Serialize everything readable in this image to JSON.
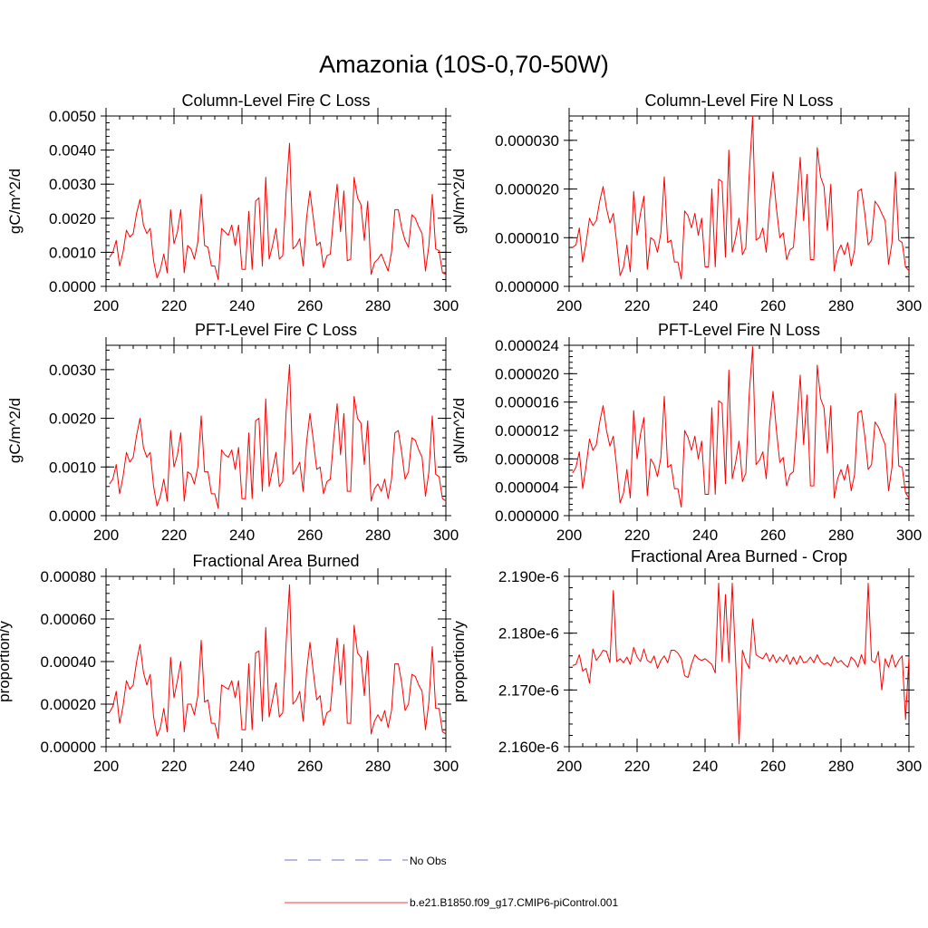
{
  "title": "Amazonia (10S-0,70-50W)",
  "legend": [
    {
      "label": "No Obs",
      "color": "#6b73c9",
      "style": "dashed"
    },
    {
      "label": "b.e21.B1850.f09_g17.CMIP6-piControl.001",
      "color": "#ff3b3b",
      "style": "solid"
    }
  ],
  "colors": {
    "series": "#ff0000",
    "axis": "#000000"
  },
  "chart_data": [
    {
      "type": "line",
      "title": "Column-Level Fire C Loss",
      "ylabel": "gC/m^2/d",
      "xlim": [
        200,
        300
      ],
      "ylim": [
        0,
        0.005
      ],
      "xticks": [
        200,
        220,
        240,
        260,
        280,
        300
      ],
      "xtick_labels": [
        "200",
        "220",
        "240",
        "260",
        "280",
        "300"
      ],
      "yticks": [
        0,
        0.001,
        0.002,
        0.003,
        0.004,
        0.005
      ],
      "ytick_labels": [
        "0.0000",
        "0.0010",
        "0.0020",
        "0.0030",
        "0.0040",
        "0.0050"
      ],
      "x_start": 201,
      "series": [
        {
          "name": "b.e21.B1850.f09_g17.CMIP6-piControl.001",
          "values": [
            0.00085,
            0.001,
            0.00135,
            0.0006,
            0.001,
            0.00165,
            0.00145,
            0.00155,
            0.00215,
            0.00255,
            0.0018,
            0.00155,
            0.0017,
            0.00075,
            0.00025,
            0.0005,
            0.00095,
            0.0004,
            0.00225,
            0.00125,
            0.0016,
            0.00225,
            0.0004,
            0.0012,
            0.0011,
            0.0008,
            0.0013,
            0.0027,
            0.0012,
            0.00115,
            0.0006,
            0.0006,
            0.0002,
            0.0017,
            0.0016,
            0.0015,
            0.0018,
            0.0012,
            0.0018,
            0.0005,
            0.0005,
            0.0022,
            0.0005,
            0.0025,
            0.0026,
            0.0006,
            0.0032,
            0.0008,
            0.0012,
            0.0017,
            0.0008,
            0.0009,
            0.0028,
            0.0042,
            0.0011,
            0.0012,
            0.0014,
            0.0006,
            0.002,
            0.0028,
            0.002,
            0.0012,
            0.0013,
            0.00055,
            0.0009,
            0.00095,
            0.0021,
            0.003,
            0.0016,
            0.0028,
            0.00075,
            0.0008,
            0.0032,
            0.0026,
            0.0024,
            0.00135,
            0.0025,
            0.00035,
            0.0007,
            0.0008,
            0.00095,
            0.0007,
            0.00045,
            0.001,
            0.00225,
            0.00225,
            0.0017,
            0.00135,
            0.00115,
            0.0021,
            0.002,
            0.00175,
            0.00155,
            0.00045,
            0.0012,
            0.0027,
            0.0011,
            0.00105,
            0.0004,
            0.00035
          ]
        }
      ]
    },
    {
      "type": "line",
      "title": "Column-Level Fire N Loss",
      "ylabel": "gN/m^2/d",
      "xlim": [
        200,
        300
      ],
      "ylim": [
        0,
        3.5e-05
      ],
      "xticks": [
        200,
        220,
        240,
        260,
        280,
        300
      ],
      "xtick_labels": [
        "200",
        "220",
        "240",
        "260",
        "280",
        "300"
      ],
      "yticks": [
        0,
        1e-05,
        2e-05,
        3e-05
      ],
      "ytick_labels": [
        "0.000000",
        "0.000010",
        "0.000020",
        "0.000030"
      ],
      "x_start": 201,
      "series": [
        {
          "name": "b.e21.B1850.f09_g17.CMIP6-piControl.001",
          "values": [
            8e-06,
            8.5e-06,
            1.2e-05,
            5e-06,
            9e-06,
            1.4e-05,
            1.25e-05,
            1.35e-05,
            1.75e-05,
            2.05e-05,
            1.6e-05,
            1.3e-05,
            1.5e-05,
            9e-06,
            2.2e-06,
            4e-06,
            8.5e-06,
            3e-06,
            1.95e-05,
            1.05e-05,
            1.5e-05,
            1.85e-05,
            3.5e-06,
            1e-05,
            9.5e-06,
            7e-06,
            1.1e-05,
            2.25e-05,
            9e-06,
            9.5e-06,
            5e-06,
            5e-06,
            1.5e-06,
            1.55e-05,
            1.45e-05,
            1.2e-05,
            1.5e-05,
            1.05e-05,
            1.4e-05,
            4e-06,
            4e-06,
            2e-05,
            4e-06,
            2.2e-05,
            2.15e-05,
            6e-06,
            2.8e-05,
            7e-06,
            1e-05,
            1.4e-05,
            6.5e-06,
            8e-06,
            2.3e-05,
            3.5e-05,
            9.5e-06,
            1e-05,
            1.2e-05,
            7e-06,
            1.7e-05,
            2.35e-05,
            1.6e-05,
            1e-05,
            1.1e-05,
            5.5e-06,
            7.5e-06,
            8e-06,
            1.7e-05,
            2.65e-05,
            1.35e-05,
            2.3e-05,
            5.5e-06,
            5.5e-06,
            2.85e-05,
            2.25e-05,
            2.05e-05,
            1.15e-05,
            2.1e-05,
            3.2e-06,
            7e-06,
            8.5e-06,
            6.5e-06,
            9e-06,
            4.2e-06,
            7.5e-06,
            1.95e-05,
            2e-05,
            1.5e-05,
            8.5e-06,
            9.5e-06,
            1.75e-05,
            1.65e-05,
            1.5e-05,
            1.35e-05,
            4.5e-06,
            9e-06,
            2.35e-05,
            9.5e-06,
            9e-06,
            4e-06,
            3.2e-06
          ]
        }
      ]
    },
    {
      "type": "line",
      "title": "PFT-Level Fire C Loss",
      "ylabel": "gC/m^2/d",
      "xlim": [
        200,
        300
      ],
      "ylim": [
        0,
        0.0035
      ],
      "xticks": [
        200,
        220,
        240,
        260,
        280,
        300
      ],
      "xtick_labels": [
        "200",
        "220",
        "240",
        "260",
        "280",
        "300"
      ],
      "yticks": [
        0,
        0.001,
        0.002,
        0.003
      ],
      "ytick_labels": [
        "0.0000",
        "0.0010",
        "0.0020",
        "0.0030"
      ],
      "x_start": 201,
      "series": [
        {
          "name": "b.e21.B1850.f09_g17.CMIP6-piControl.001",
          "values": [
            0.00065,
            0.00075,
            0.00105,
            0.00045,
            0.0008,
            0.0013,
            0.0011,
            0.0012,
            0.00165,
            0.002,
            0.0014,
            0.0012,
            0.0013,
            0.0006,
            0.0002,
            0.0004,
            0.00075,
            0.0003,
            0.00175,
            0.001,
            0.00125,
            0.0017,
            0.0003,
            0.0009,
            0.00085,
            0.00065,
            0.001,
            0.00205,
            0.0009,
            0.0009,
            0.00045,
            0.00045,
            0.00015,
            0.00135,
            0.00125,
            0.0012,
            0.00135,
            0.00095,
            0.0014,
            0.00035,
            0.00035,
            0.0017,
            0.00035,
            0.00195,
            0.002,
            0.0005,
            0.0024,
            0.0006,
            0.00095,
            0.0013,
            0.0006,
            0.0007,
            0.00215,
            0.0031,
            0.00085,
            0.00095,
            0.0011,
            0.0005,
            0.0015,
            0.0021,
            0.00155,
            0.00095,
            0.001,
            0.00045,
            0.0007,
            0.00075,
            0.0016,
            0.0023,
            0.00125,
            0.0021,
            0.0005,
            0.0005,
            0.00245,
            0.002,
            0.0019,
            0.00105,
            0.00195,
            0.0003,
            0.00055,
            0.00065,
            0.0005,
            0.00075,
            0.00035,
            0.00075,
            0.0017,
            0.00175,
            0.0013,
            0.00075,
            0.0009,
            0.0016,
            0.00155,
            0.00135,
            0.0012,
            0.0004,
            0.0009,
            0.00205,
            0.00085,
            0.0008,
            0.00035,
            0.0003
          ]
        }
      ]
    },
    {
      "type": "line",
      "title": "PFT-Level Fire N Loss",
      "ylabel": "gN/m^2/d",
      "xlim": [
        200,
        300
      ],
      "ylim": [
        0,
        2.4e-05
      ],
      "xticks": [
        200,
        220,
        240,
        260,
        280,
        300
      ],
      "xtick_labels": [
        "200",
        "220",
        "240",
        "260",
        "280",
        "300"
      ],
      "yticks": [
        0,
        4e-06,
        8e-06,
        1.2e-05,
        1.6e-05,
        2e-05,
        2.4e-05
      ],
      "ytick_labels": [
        "0.000000",
        "0.000004",
        "0.000008",
        "0.000012",
        "0.000016",
        "0.000020",
        "0.000024"
      ],
      "x_start": 201,
      "series": [
        {
          "name": "b.e21.B1850.f09_g17.CMIP6-piControl.001",
          "values": [
            6e-06,
            6.8e-06,
            9e-06,
            3.8e-06,
            7e-06,
            1.08e-05,
            9.2e-06,
            1e-05,
            1.32e-05,
            1.55e-05,
            1.2e-05,
            9.8e-06,
            1.12e-05,
            6.8e-06,
            1.8e-06,
            3.2e-06,
            6.5e-06,
            2.5e-06,
            1.48e-05,
            8e-06,
            1.15e-05,
            1.38e-05,
            2.8e-06,
            8e-06,
            7.2e-06,
            5.5e-06,
            8.2e-06,
            1.68e-05,
            6.8e-06,
            7.2e-06,
            3.8e-06,
            3.8e-06,
            1.2e-06,
            1.2e-05,
            1.1e-05,
            9.2e-06,
            1.12e-05,
            8e-06,
            1.05e-05,
            3e-06,
            3e-06,
            1.52e-05,
            3e-06,
            1.62e-05,
            1.58e-05,
            4.5e-06,
            2.05e-05,
            5.2e-06,
            7.5e-06,
            1.05e-05,
            4.8e-06,
            6e-06,
            1.72e-05,
            2.38e-05,
            7.2e-06,
            7.8e-06,
            9e-06,
            5.2e-06,
            1.28e-05,
            1.75e-05,
            1.2e-05,
            7.5e-06,
            8.2e-06,
            4.2e-06,
            5.8e-06,
            6.2e-06,
            1.28e-05,
            1.98e-05,
            1e-05,
            1.7e-05,
            4.2e-06,
            4.2e-06,
            2.12e-05,
            1.65e-05,
            1.52e-05,
            8.8e-06,
            1.55e-05,
            2.5e-06,
            5.2e-06,
            6.5e-06,
            5e-06,
            7.2e-06,
            3.5e-06,
            5.8e-06,
            1.45e-05,
            1.48e-05,
            1.12e-05,
            6.5e-06,
            7.2e-06,
            1.32e-05,
            1.25e-05,
            1.12e-05,
            1e-05,
            3.5e-06,
            6.8e-06,
            1.72e-05,
            7e-06,
            6.8e-06,
            3.2e-06,
            2.5e-06
          ]
        }
      ]
    },
    {
      "type": "line",
      "title": "Fractional Area Burned",
      "ylabel": "proportion/y",
      "xlim": [
        200,
        300
      ],
      "ylim": [
        0,
        0.0008
      ],
      "xticks": [
        200,
        220,
        240,
        260,
        280,
        300
      ],
      "xtick_labels": [
        "200",
        "220",
        "240",
        "260",
        "280",
        "300"
      ],
      "yticks": [
        0,
        0.0002,
        0.0004,
        0.0006,
        0.0008
      ],
      "ytick_labels": [
        "0.00000",
        "0.00020",
        "0.00040",
        "0.00060",
        "0.00080"
      ],
      "x_start": 201,
      "series": [
        {
          "name": "b.e21.B1850.f09_g17.CMIP6-piControl.001",
          "values": [
            0.00016,
            0.00019,
            0.00026,
            0.00011,
            0.00019,
            0.00031,
            0.00027,
            0.00029,
            0.0004,
            0.00048,
            0.00035,
            0.00029,
            0.00034,
            0.00014,
            5e-05,
            9e-05,
            0.00018,
            7e-05,
            0.00042,
            0.00023,
            0.00031,
            0.0004,
            7e-05,
            0.0002,
            0.0002,
            0.00015,
            0.00024,
            0.0005,
            0.00021,
            0.00022,
            0.00011,
            0.00011,
            4e-05,
            0.00029,
            0.00028,
            0.00027,
            0.00031,
            0.00023,
            0.00031,
            8e-05,
            8e-05,
            0.00039,
            8e-05,
            0.00044,
            0.00045,
            0.00012,
            0.00056,
            0.00014,
            0.00022,
            0.0003,
            0.00014,
            0.00016,
            0.00049,
            0.00076,
            0.0002,
            0.00022,
            0.00026,
            0.00012,
            0.00035,
            0.00049,
            0.00035,
            0.00022,
            0.00024,
            0.0001,
            0.00016,
            0.00017,
            0.00036,
            0.00051,
            0.00029,
            0.00048,
            0.00011,
            0.00011,
            0.00057,
            0.00044,
            0.00042,
            0.00024,
            0.00045,
            6e-05,
            0.00012,
            0.00015,
            0.00012,
            0.00017,
            9e-05,
            0.00017,
            0.00039,
            0.00039,
            0.0003,
            0.00017,
            0.0002,
            0.00034,
            0.00033,
            0.00029,
            0.00026,
            8e-05,
            0.00021,
            0.00047,
            0.00018,
            0.00018,
            7e-05,
            6e-05
          ]
        }
      ]
    },
    {
      "type": "line",
      "title": "Fractional Area Burned - Crop",
      "ylabel": "proportion/y",
      "xlim": [
        200,
        300
      ],
      "ylim": [
        2.16e-06,
        2.19e-06
      ],
      "xticks": [
        200,
        220,
        240,
        260,
        280,
        300
      ],
      "xtick_labels": [
        "200",
        "220",
        "240",
        "260",
        "280",
        "300"
      ],
      "yticks": [
        2.16e-06,
        2.17e-06,
        2.18e-06,
        2.19e-06
      ],
      "ytick_labels": [
        "2.160e-6",
        "2.170e-6",
        "2.180e-6",
        "2.190e-6"
      ],
      "x_start": 201,
      "series": [
        {
          "name": "b.e21.B1850.f09_g17.CMIP6-piControl.001",
          "values": [
            2.1743e-06,
            2.1745e-06,
            2.1762e-06,
            2.1733e-06,
            2.1738e-06,
            2.1712e-06,
            2.1772e-06,
            2.1752e-06,
            2.176e-06,
            2.177e-06,
            2.1768e-06,
            2.1748e-06,
            2.1875e-06,
            2.175e-06,
            2.1755e-06,
            2.1748e-06,
            2.1758e-06,
            2.1745e-06,
            2.1775e-06,
            2.1758e-06,
            2.175e-06,
            2.1772e-06,
            2.1752e-06,
            2.1748e-06,
            2.176e-06,
            2.1738e-06,
            2.1752e-06,
            2.176e-06,
            2.1748e-06,
            2.177e-06,
            2.177e-06,
            2.1765e-06,
            2.1755e-06,
            2.1725e-06,
            2.1722e-06,
            2.1745e-06,
            2.1762e-06,
            2.1755e-06,
            2.1752e-06,
            2.1755e-06,
            2.175e-06,
            2.1745e-06,
            2.173e-06,
            2.1888e-06,
            2.175e-06,
            2.1868e-06,
            2.1748e-06,
            2.1888e-06,
            2.175e-06,
            2.1605e-06,
            2.177e-06,
            2.175e-06,
            2.1738e-06,
            2.1825e-06,
            2.1762e-06,
            2.1758e-06,
            2.1755e-06,
            2.1765e-06,
            2.175e-06,
            2.1762e-06,
            2.1748e-06,
            2.1758e-06,
            2.175e-06,
            2.1762e-06,
            2.1745e-06,
            2.1758e-06,
            2.1745e-06,
            2.176e-06,
            2.1748e-06,
            2.175e-06,
            2.1758e-06,
            2.1748e-06,
            2.1762e-06,
            2.175e-06,
            2.1745e-06,
            2.1748e-06,
            2.1742e-06,
            2.1758e-06,
            2.1748e-06,
            2.1752e-06,
            2.1745e-06,
            2.174e-06,
            2.1758e-06,
            2.1752e-06,
            2.174e-06,
            2.1762e-06,
            2.1745e-06,
            2.1888e-06,
            2.1752e-06,
            2.1748e-06,
            2.1768e-06,
            2.17e-06,
            2.1755e-06,
            2.174e-06,
            2.1762e-06,
            2.174e-06,
            2.1752e-06,
            2.176e-06,
            2.1648e-06,
            2.1758e-06
          ]
        }
      ]
    }
  ]
}
